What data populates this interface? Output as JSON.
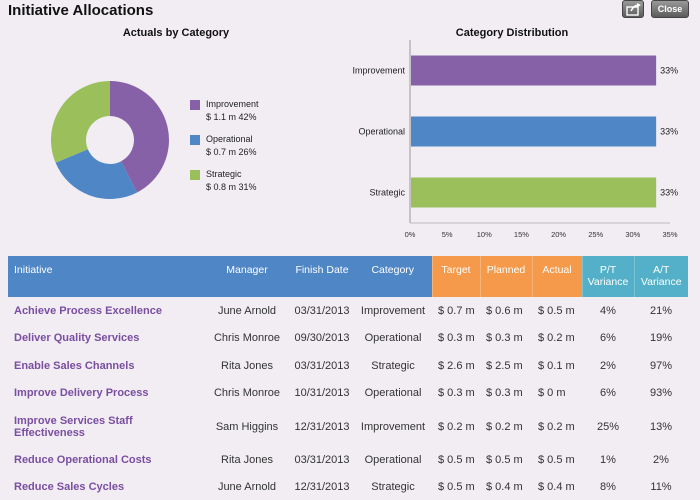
{
  "header": {
    "title": "Initiative Allocations",
    "close_label": "Close"
  },
  "colors": {
    "improvement": "#8661a8",
    "operational": "#4f86c6",
    "strategic": "#9bbf5a",
    "header_blue": "#4f86c6",
    "header_orange": "#f5994a",
    "header_teal": "#54b0c8"
  },
  "icons": {
    "export": "export-icon"
  },
  "donut": {
    "title": "Actuals by Category",
    "legend": [
      {
        "name": "Improvement",
        "value": "$ 1.1 m 42%",
        "percent": 42
      },
      {
        "name": "Operational",
        "value": "$ 0.7 m 26%",
        "percent": 26
      },
      {
        "name": "Strategic",
        "value": "$ 0.8 m 31%",
        "percent": 31
      }
    ]
  },
  "chart_data": {
    "type": "bar",
    "orientation": "horizontal",
    "title": "Category Distribution",
    "categories": [
      "Improvement",
      "Operational",
      "Strategic"
    ],
    "values": [
      33,
      33,
      33
    ],
    "value_labels": [
      "33%",
      "33%",
      "33%"
    ],
    "xlim": [
      0,
      35
    ],
    "x_ticks": [
      "0%",
      "5%",
      "10%",
      "15%",
      "20%",
      "25%",
      "30%",
      "35%"
    ],
    "grid": false
  },
  "table": {
    "columns": {
      "initiative": "Initiative",
      "manager": "Manager",
      "finish": "Finish Date",
      "category": "Category",
      "target": "Target",
      "planned": "Planned",
      "actual": "Actual",
      "pt_var_1": "P/T",
      "pt_var_2": "Variance",
      "at_var_1": "A/T",
      "at_var_2": "Variance"
    },
    "rows": [
      {
        "initiative": "Achieve Process Excellence",
        "manager": "June Arnold",
        "finish": "03/31/2013",
        "category": "Improvement",
        "target": "$ 0.7 m",
        "planned": "$ 0.6 m",
        "actual": "$ 0.5 m",
        "pt": "4%",
        "at": "21%"
      },
      {
        "initiative": "Deliver Quality Services",
        "manager": "Chris Monroe",
        "finish": "09/30/2013",
        "category": "Operational",
        "target": "$ 0.3 m",
        "planned": "$ 0.3 m",
        "actual": "$ 0.2 m",
        "pt": "6%",
        "at": "19%"
      },
      {
        "initiative": "Enable Sales Channels",
        "manager": "Rita Jones",
        "finish": "03/31/2013",
        "category": "Strategic",
        "target": "$ 2.6 m",
        "planned": "$ 2.5 m",
        "actual": "$ 0.1 m",
        "pt": "2%",
        "at": "97%"
      },
      {
        "initiative": "Improve Delivery Process",
        "manager": "Chris Monroe",
        "finish": "10/31/2013",
        "category": "Operational",
        "target": "$ 0.3 m",
        "planned": "$ 0.3 m",
        "actual": "$ 0 m",
        "pt": "6%",
        "at": "93%"
      },
      {
        "initiative": "Improve Services Staff Effectiveness",
        "manager": "Sam Higgins",
        "finish": "12/31/2013",
        "category": "Improvement",
        "target": "$ 0.2 m",
        "planned": "$ 0.2 m",
        "actual": "$ 0.2 m",
        "pt": "25%",
        "at": "13%"
      },
      {
        "initiative": "Reduce Operational Costs",
        "manager": "Rita Jones",
        "finish": "03/31/2013",
        "category": "Operational",
        "target": "$ 0.5 m",
        "planned": "$ 0.5 m",
        "actual": "$ 0.5 m",
        "pt": "1%",
        "at": "2%"
      },
      {
        "initiative": "Reduce Sales Cycles",
        "manager": "June Arnold",
        "finish": "12/31/2013",
        "category": "Strategic",
        "target": "$ 0.5 m",
        "planned": "$ 0.4 m",
        "actual": "$ 0.4 m",
        "pt": "8%",
        "at": "11%"
      }
    ]
  }
}
